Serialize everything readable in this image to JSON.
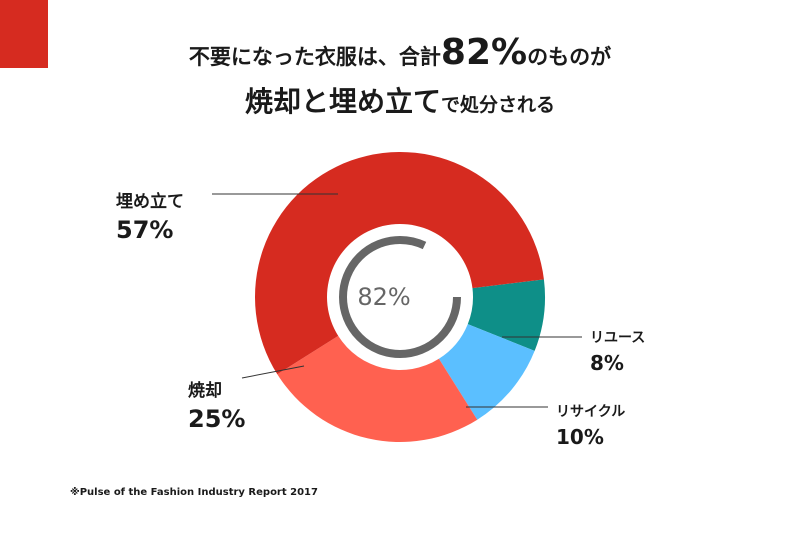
{
  "colors": {
    "accent": "#d62b20",
    "landfill": "#d62b20",
    "incineration": "#ff6150",
    "reuse": "#0e8f88",
    "recycle": "#5bbfff",
    "inner_ring": "#666666",
    "text": "#1a1a1a"
  },
  "title": {
    "line1_a": "不要になった衣服は、合計",
    "line1_b": "82%",
    "line1_c": "のものが",
    "line2_a": "焼却と埋め立て",
    "line2_b": "で処分される"
  },
  "chart_data": {
    "type": "pie",
    "variant": "donut",
    "title": "不要になった衣服は、合計82%のものが焼却と埋め立てで処分される",
    "categories": [
      "埋め立て",
      "焼却",
      "リユース",
      "リサイクル"
    ],
    "values": [
      57,
      25,
      8,
      10
    ],
    "unit": "%",
    "labels": [
      {
        "name": "埋め立て",
        "value": "57%"
      },
      {
        "name": "焼却",
        "value": "25%"
      },
      {
        "name": "リユース",
        "value": "8%"
      },
      {
        "name": "リサイクル",
        "value": "10%"
      }
    ],
    "inner_ring": {
      "label": "82%",
      "value": 82
    }
  },
  "source": "※Pulse of the Fashion Industry Report 2017"
}
